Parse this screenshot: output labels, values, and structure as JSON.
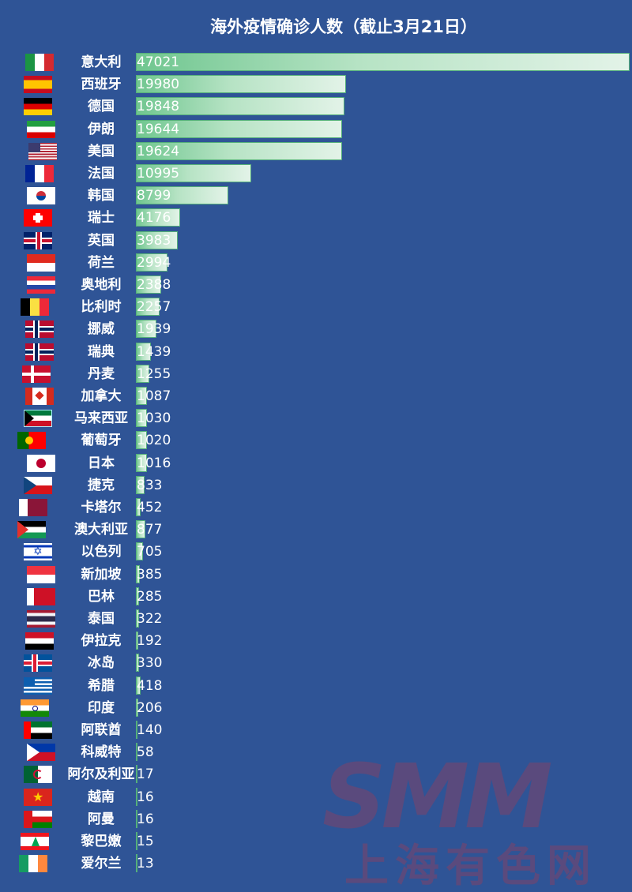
{
  "title": "海外疫情确诊人数（截止3月21日）",
  "watermark": {
    "logo": "SMM",
    "subtitle": "上海有色网"
  },
  "colors": {
    "background": "#2f5496",
    "bar_start": "#6fc68f",
    "bar_end": "#e3f3e8",
    "bar_border": "#55b07a",
    "text": "#ffffff"
  },
  "rows": [
    {
      "country": "意大利",
      "value": "47021",
      "flag": "it"
    },
    {
      "country": "西班牙",
      "value": "19980",
      "flag": "es"
    },
    {
      "country": "德国",
      "value": "19848",
      "flag": "de"
    },
    {
      "country": "伊朗",
      "value": "19644",
      "flag": "ir"
    },
    {
      "country": "美国",
      "value": "19624",
      "flag": "us"
    },
    {
      "country": "法国",
      "value": "10995",
      "flag": "fr"
    },
    {
      "country": "韩国",
      "value": "8799",
      "flag": "kr"
    },
    {
      "country": "瑞士",
      "value": "4176",
      "flag": "ch"
    },
    {
      "country": "英国",
      "value": "3983",
      "flag": "gb"
    },
    {
      "country": "荷兰",
      "value": "2994",
      "flag": "nl"
    },
    {
      "country": "奥地利",
      "value": "2388",
      "flag": "at"
    },
    {
      "country": "比利时",
      "value": "2257",
      "flag": "be"
    },
    {
      "country": "挪威",
      "value": "1939",
      "flag": "no"
    },
    {
      "country": "瑞典",
      "value": "1439",
      "flag": "no"
    },
    {
      "country": "丹麦",
      "value": "1255",
      "flag": "dk"
    },
    {
      "country": "加拿大",
      "value": "1087",
      "flag": "ca"
    },
    {
      "country": "马来西亚",
      "value": "1030",
      "flag": "kw"
    },
    {
      "country": "葡萄牙",
      "value": "1020",
      "flag": "pt"
    },
    {
      "country": "日本",
      "value": "1016",
      "flag": "jp"
    },
    {
      "country": "捷克",
      "value": "833",
      "flag": "cz"
    },
    {
      "country": "卡塔尔",
      "value": "452",
      "flag": "qa"
    },
    {
      "country": "澳大利亚",
      "value": "877",
      "flag": "ps"
    },
    {
      "country": "以色列",
      "value": "705",
      "flag": "il"
    },
    {
      "country": "新加坡",
      "value": "385",
      "flag": "sg"
    },
    {
      "country": "巴林",
      "value": "285",
      "flag": "bh"
    },
    {
      "country": "泰国",
      "value": "322",
      "flag": "th"
    },
    {
      "country": "伊拉克",
      "value": "192",
      "flag": "iq"
    },
    {
      "country": "冰岛",
      "value": "330",
      "flag": "is"
    },
    {
      "country": "希腊",
      "value": "418",
      "flag": "gr"
    },
    {
      "country": "印度",
      "value": "206",
      "flag": "in"
    },
    {
      "country": "阿联酋",
      "value": "140",
      "flag": "ae"
    },
    {
      "country": "科威特",
      "value": "58",
      "flag": "ph"
    },
    {
      "country": "阿尔及利亚",
      "value": "17",
      "flag": "dz"
    },
    {
      "country": "越南",
      "value": "16",
      "flag": "vn"
    },
    {
      "country": "阿曼",
      "value": "16",
      "flag": "om"
    },
    {
      "country": "黎巴嫩",
      "value": "15",
      "flag": "lb"
    },
    {
      "country": "爱尔兰",
      "value": "13",
      "flag": "ie"
    }
  ],
  "chart_data": {
    "type": "bar",
    "orientation": "horizontal",
    "title": "海外疫情确诊人数（截止3月21日）",
    "xlabel": "",
    "ylabel": "",
    "categories": [
      "意大利",
      "西班牙",
      "德国",
      "伊朗",
      "美国",
      "法国",
      "韩国",
      "瑞士",
      "英国",
      "荷兰",
      "奥地利",
      "比利时",
      "挪威",
      "瑞典",
      "丹麦",
      "加拿大",
      "马来西亚",
      "葡萄牙",
      "日本",
      "捷克",
      "卡塔尔",
      "澳大利亚",
      "以色列",
      "新加坡",
      "巴林",
      "泰国",
      "伊拉克",
      "冰岛",
      "希腊",
      "印度",
      "阿联酋",
      "科威特",
      "阿尔及利亚",
      "越南",
      "阿曼",
      "黎巴嫩",
      "爱尔兰"
    ],
    "values": [
      47021,
      19980,
      19848,
      19644,
      19624,
      10995,
      8799,
      4176,
      3983,
      2994,
      2388,
      2257,
      1939,
      1439,
      1255,
      1087,
      1030,
      1020,
      1016,
      833,
      452,
      877,
      705,
      385,
      285,
      322,
      192,
      330,
      418,
      206,
      140,
      58,
      17,
      16,
      16,
      15,
      13
    ],
    "xlim": [
      0,
      47021
    ],
    "grid": false,
    "legend": null,
    "data_labels": true
  }
}
